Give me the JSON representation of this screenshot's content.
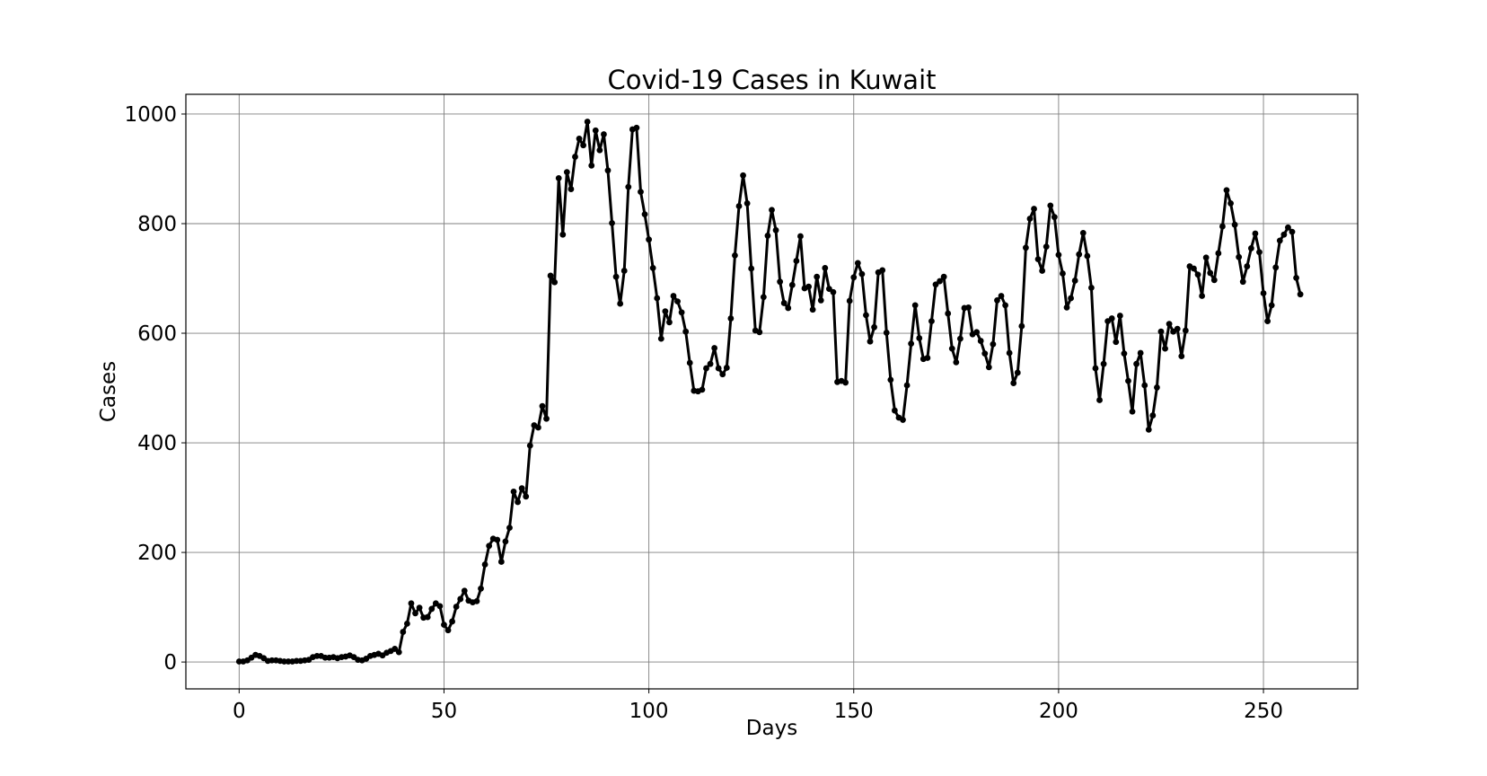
{
  "chart_data": {
    "type": "line",
    "title": "Covid-19 Cases in Kuwait",
    "xlabel": "Days",
    "ylabel": "Cases",
    "xlim": [
      -13,
      273
    ],
    "ylim": [
      -49,
      1036
    ],
    "xticks": [
      0,
      50,
      100,
      150,
      200,
      250
    ],
    "yticks": [
      0,
      200,
      400,
      600,
      800,
      1000
    ],
    "xtick_labels": [
      "0",
      "50",
      "100",
      "150",
      "200",
      "250"
    ],
    "ytick_labels": [
      "0",
      "200",
      "400",
      "600",
      "800",
      "1000"
    ],
    "grid": true,
    "legend": "none",
    "series": [
      {
        "color": "#000000",
        "marker": "circle",
        "x_start": 0,
        "x_step": 1,
        "values": [
          1,
          1,
          3,
          8,
          13,
          11,
          7,
          2,
          3,
          3,
          2,
          1,
          1,
          1,
          2,
          2,
          3,
          4,
          9,
          11,
          11,
          8,
          8,
          9,
          7,
          9,
          10,
          12,
          9,
          4,
          3,
          6,
          11,
          13,
          15,
          12,
          17,
          20,
          24,
          18,
          55,
          70,
          107,
          89,
          99,
          81,
          82,
          97,
          107,
          102,
          68,
          58,
          74,
          101,
          115,
          130,
          112,
          109,
          111,
          134,
          178,
          212,
          225,
          223,
          183,
          220,
          245,
          311,
          292,
          317,
          302,
          395,
          432,
          428,
          467,
          444,
          705,
          693,
          883,
          780,
          894,
          863,
          922,
          955,
          943,
          986,
          906,
          970,
          934,
          963,
          897,
          801,
          703,
          654,
          714,
          867,
          972,
          975,
          858,
          817,
          771,
          719,
          664,
          590,
          640,
          620,
          668,
          658,
          638,
          603,
          546,
          495,
          494,
          497,
          536,
          544,
          573,
          536,
          525,
          537,
          627,
          742,
          832,
          888,
          837,
          718,
          605,
          602,
          666,
          778,
          825,
          788,
          694,
          655,
          646,
          688,
          732,
          777,
          682,
          685,
          643,
          703,
          660,
          719,
          681,
          675,
          511,
          513,
          510,
          659,
          702,
          728,
          708,
          633,
          585,
          611,
          711,
          715,
          601,
          515,
          459,
          446,
          442,
          505,
          581,
          651,
          591,
          553,
          555,
          622,
          689,
          695,
          703,
          636,
          572,
          547,
          590,
          646,
          647,
          598,
          602,
          586,
          563,
          538,
          580,
          660,
          668,
          651,
          564,
          509,
          528,
          613,
          756,
          809,
          827,
          735,
          714,
          758,
          833,
          812,
          743,
          709,
          647,
          664,
          696,
          744,
          783,
          741,
          683,
          536,
          478,
          544,
          622,
          627,
          584,
          632,
          563,
          513,
          457,
          544,
          564,
          505,
          424,
          450,
          501,
          603,
          572,
          617,
          603,
          608,
          558,
          605,
          722,
          718,
          707,
          668,
          738,
          710,
          697,
          746,
          795,
          861,
          837,
          798,
          739,
          694,
          722,
          755,
          782,
          748,
          673,
          622,
          651,
          720,
          769,
          780,
          793,
          785,
          701,
          671
        ]
      }
    ]
  }
}
